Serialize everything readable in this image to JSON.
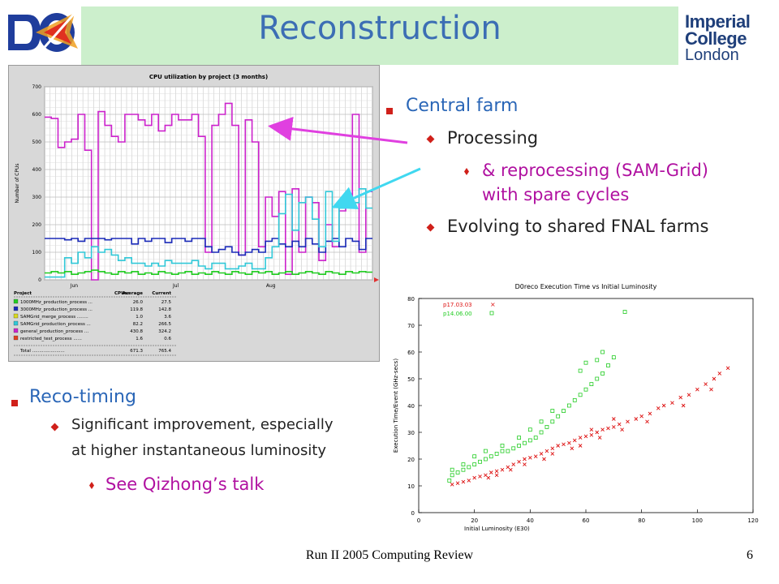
{
  "title": "Reconstruction",
  "logo_right": {
    "line1": "Imperial College",
    "line2": "London"
  },
  "bullets_top": {
    "l1": "Central farm",
    "l2a": "Processing",
    "l3a_1": "& reprocessing (SAM-Grid)",
    "l3a_2": "with spare cycles",
    "l2b": "Evolving to shared FNAL farms"
  },
  "bullets_bottom": {
    "l1": "Reco-timing",
    "l2_1": "Significant improvement, especially",
    "l2_2": "at higher instantaneous luminosity",
    "l3": "See Qizhong’s talk"
  },
  "footer": "Run II 2005 Computing Review",
  "page_number": "6",
  "colors": {
    "title_bg": "#ccefcc",
    "title": "#3c6eb4",
    "bullet": "#d0201a",
    "accent": "#b010a0",
    "l1_text": "#2a66b7"
  },
  "arrows": {
    "magenta": "#e040e0",
    "cyan": "#40d8f0"
  },
  "chart_data": [
    {
      "type": "line",
      "title": "CPU utilization by project (3 months)",
      "ylabel": "Number of CPUs",
      "ylim": [
        0,
        700
      ],
      "yticks": [
        0,
        100,
        200,
        300,
        400,
        500,
        600,
        700
      ],
      "xticks": [
        "Jun",
        "Jul",
        "Aug"
      ],
      "legend_header": {
        "project": "Project",
        "cpus": "CPUs:",
        "avg": "Average",
        "cur": "Current"
      },
      "legend": [
        {
          "name": "1000MHz_production_process ...",
          "avg": "26.0",
          "cur": "27.5",
          "color": "#22cc22"
        },
        {
          "name": "3000MHz_production_process ...",
          "avg": "119.8",
          "cur": "142.8",
          "color": "#1a2ab8"
        },
        {
          "name": "SAMGrid_merge_process ........",
          "avg": "1.0",
          "cur": "3.6",
          "color": "#d8d820"
        },
        {
          "name": "SAMGrid_production_process ...",
          "avg": "82.2",
          "cur": "266.5",
          "color": "#30c8d8"
        },
        {
          "name": "general_production_process ...",
          "avg": "430.8",
          "cur": "324.2",
          "color": "#cc22cc"
        },
        {
          "name": "restricted_test_process ......",
          "avg": "1.6",
          "cur": "0.6",
          "color": "#e04020"
        }
      ],
      "total": {
        "label": "Total .......................",
        "avg": "671.3",
        "cur": "765.4"
      },
      "series": [
        {
          "name": "general_production_process ...",
          "values": [
            590,
            585,
            480,
            500,
            510,
            600,
            470,
            0,
            610,
            560,
            520,
            500,
            600,
            600,
            580,
            560,
            600,
            540,
            560,
            600,
            580,
            580,
            600,
            520,
            100,
            560,
            600,
            640,
            560,
            90,
            580,
            500,
            120,
            300,
            230,
            320,
            20,
            330,
            100,
            300,
            280,
            70,
            200,
            120,
            250,
            300,
            600,
            100,
            320
          ],
          "color": "#cc22cc"
        },
        {
          "name": "3000MHz_production_process ...",
          "values": [
            150,
            150,
            150,
            145,
            150,
            140,
            150,
            150,
            150,
            145,
            150,
            150,
            150,
            130,
            150,
            140,
            150,
            150,
            135,
            150,
            150,
            140,
            150,
            150,
            120,
            100,
            110,
            120,
            100,
            90,
            100,
            110,
            100,
            140,
            150,
            130,
            120,
            140,
            120,
            150,
            130,
            100,
            140,
            150,
            120,
            150,
            140,
            110,
            150
          ],
          "color": "#1a2ab8"
        },
        {
          "name": "SAMGrid_production_process ...",
          "values": [
            10,
            10,
            10,
            80,
            60,
            100,
            80,
            120,
            100,
            110,
            90,
            70,
            80,
            60,
            60,
            50,
            60,
            50,
            70,
            60,
            60,
            60,
            70,
            50,
            40,
            60,
            60,
            40,
            40,
            50,
            60,
            40,
            40,
            80,
            120,
            240,
            310,
            180,
            280,
            300,
            220,
            120,
            320,
            140,
            260,
            300,
            280,
            330,
            260
          ],
          "color": "#30c8d8"
        },
        {
          "name": "1000MHz_production_process ...",
          "values": [
            25,
            30,
            25,
            30,
            20,
            25,
            30,
            35,
            30,
            25,
            20,
            30,
            25,
            30,
            20,
            25,
            20,
            30,
            25,
            20,
            25,
            30,
            20,
            25,
            20,
            30,
            25,
            20,
            30,
            25,
            20,
            30,
            25,
            30,
            20,
            25,
            30,
            20,
            25,
            30,
            25,
            20,
            30,
            25,
            20,
            30,
            25,
            30,
            28
          ],
          "color": "#22cc22"
        }
      ]
    },
    {
      "type": "scatter",
      "title": "D0reco Execution Time vs Initial Luminosity",
      "xlabel": "Initial Luminosity (E30)",
      "ylabel": "Execution Time/Event (GHz-secs)",
      "xlim": [
        0,
        120
      ],
      "ylim": [
        0,
        80
      ],
      "xticks": [
        0,
        20,
        40,
        60,
        80,
        100,
        120
      ],
      "yticks": [
        0,
        10,
        20,
        30,
        40,
        50,
        60,
        70,
        80
      ],
      "legend_position": "top-left",
      "series": [
        {
          "name": "p17.03.03",
          "color": "#dd1111",
          "marker": "x",
          "points": [
            [
              12,
              10.5
            ],
            [
              14,
              11
            ],
            [
              16,
              11.5
            ],
            [
              18,
              12
            ],
            [
              20,
              13
            ],
            [
              22,
              13.5
            ],
            [
              24,
              14
            ],
            [
              26,
              15
            ],
            [
              28,
              15.5
            ],
            [
              30,
              16
            ],
            [
              32,
              17
            ],
            [
              34,
              18
            ],
            [
              36,
              19
            ],
            [
              38,
              20
            ],
            [
              40,
              20.5
            ],
            [
              42,
              21
            ],
            [
              44,
              22
            ],
            [
              46,
              23
            ],
            [
              48,
              24
            ],
            [
              50,
              25
            ],
            [
              52,
              25.5
            ],
            [
              54,
              26
            ],
            [
              56,
              27
            ],
            [
              58,
              28
            ],
            [
              60,
              28.5
            ],
            [
              62,
              29
            ],
            [
              64,
              30
            ],
            [
              66,
              31
            ],
            [
              68,
              31.5
            ],
            [
              70,
              32
            ],
            [
              72,
              33
            ],
            [
              75,
              34
            ],
            [
              78,
              35
            ],
            [
              80,
              36
            ],
            [
              83,
              37
            ],
            [
              86,
              39
            ],
            [
              88,
              40
            ],
            [
              91,
              41
            ],
            [
              94,
              43
            ],
            [
              97,
              44
            ],
            [
              100,
              46
            ],
            [
              103,
              48
            ],
            [
              106,
              50
            ],
            [
              108,
              52
            ],
            [
              111,
              54
            ],
            [
              25,
              13
            ],
            [
              33,
              16
            ],
            [
              45,
              20
            ],
            [
              55,
              24
            ],
            [
              65,
              28
            ],
            [
              73,
              31
            ],
            [
              82,
              34
            ],
            [
              95,
              40
            ],
            [
              105,
              46
            ],
            [
              70,
              35
            ],
            [
              62,
              31
            ],
            [
              58,
              25
            ],
            [
              48,
              22
            ],
            [
              38,
              18
            ],
            [
              28,
              14
            ]
          ]
        },
        {
          "name": "p14.06.00",
          "color": "#22cc22",
          "marker": "square",
          "points": [
            [
              11,
              12
            ],
            [
              12,
              14
            ],
            [
              14,
              15
            ],
            [
              16,
              16
            ],
            [
              18,
              17
            ],
            [
              20,
              18
            ],
            [
              22,
              19
            ],
            [
              24,
              20
            ],
            [
              26,
              21
            ],
            [
              28,
              22
            ],
            [
              30,
              23
            ],
            [
              32,
              23
            ],
            [
              34,
              24
            ],
            [
              36,
              25
            ],
            [
              38,
              26
            ],
            [
              40,
              27
            ],
            [
              42,
              28
            ],
            [
              44,
              30
            ],
            [
              46,
              32
            ],
            [
              48,
              34
            ],
            [
              50,
              36
            ],
            [
              52,
              38
            ],
            [
              54,
              40
            ],
            [
              56,
              42
            ],
            [
              58,
              44
            ],
            [
              60,
              46
            ],
            [
              62,
              48
            ],
            [
              64,
              50
            ],
            [
              66,
              52
            ],
            [
              68,
              55
            ],
            [
              70,
              58
            ],
            [
              74,
              75
            ],
            [
              66,
              60
            ],
            [
              64,
              57
            ],
            [
              60,
              56
            ],
            [
              58,
              53
            ],
            [
              48,
              38
            ],
            [
              44,
              34
            ],
            [
              40,
              31
            ],
            [
              36,
              28
            ],
            [
              30,
              25
            ],
            [
              24,
              23
            ],
            [
              20,
              21
            ],
            [
              16,
              18
            ],
            [
              12,
              16
            ]
          ]
        }
      ]
    }
  ]
}
